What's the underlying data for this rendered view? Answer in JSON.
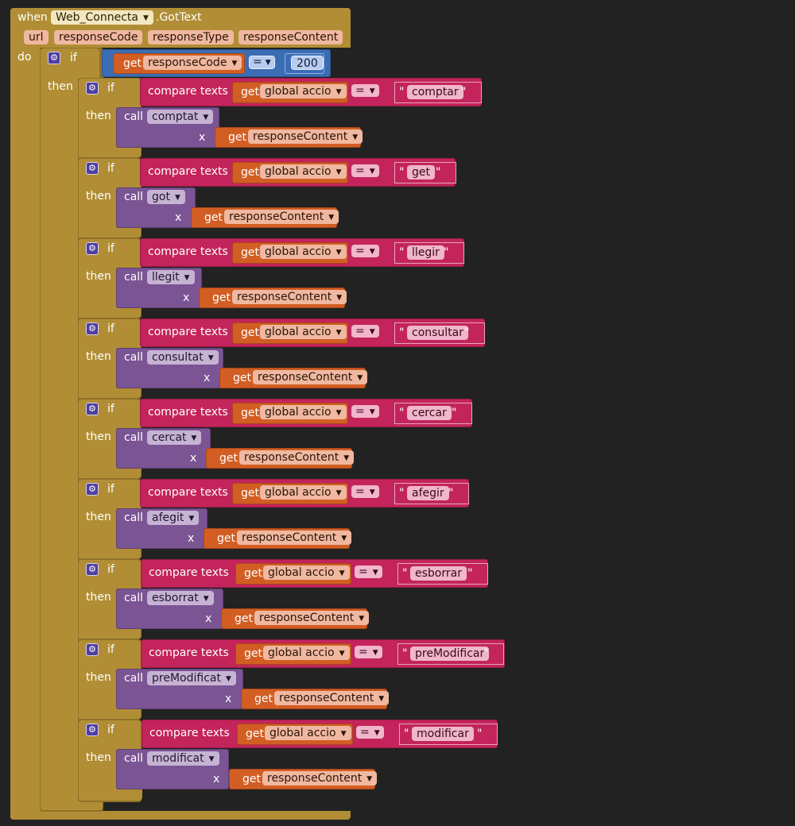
{
  "event": {
    "when_label": "when",
    "component": "Web_Connecta",
    "event_name": ".GotText",
    "params": [
      "url",
      "responseCode",
      "responseType",
      "responseContent"
    ],
    "do_label": "do"
  },
  "outer_if": {
    "if_label": "if",
    "then_label": "then",
    "get_label": "get",
    "variable": "responseCode",
    "operator": "=",
    "value": "200"
  },
  "branches": [
    {
      "if_label": "if",
      "then_label": "then",
      "compare_label": "compare texts",
      "get_label": "get",
      "variable": "global accio",
      "operator": "=",
      "quote_open": "\"",
      "string": "comptar",
      "quote_close": "\"",
      "call_label": "call",
      "procedure": "comptat",
      "arg_label": "x",
      "arg_get": "get",
      "arg_variable": "responseContent"
    },
    {
      "if_label": "if",
      "then_label": "then",
      "compare_label": "compare texts",
      "get_label": "get",
      "variable": "global accio",
      "operator": "=",
      "quote_open": "\"",
      "string": "get",
      "quote_close": "\"",
      "call_label": "call",
      "procedure": "got",
      "arg_label": "x",
      "arg_get": "get",
      "arg_variable": "responseContent"
    },
    {
      "if_label": "if",
      "then_label": "then",
      "compare_label": "compare texts",
      "get_label": "get",
      "variable": "global accio",
      "operator": "=",
      "quote_open": "\"",
      "string": "llegir",
      "quote_close": "\"",
      "call_label": "call",
      "procedure": "llegit",
      "arg_label": "x",
      "arg_get": "get",
      "arg_variable": "responseContent"
    },
    {
      "if_label": "if",
      "then_label": "then",
      "compare_label": "compare texts",
      "get_label": "get",
      "variable": "global accio",
      "operator": "=",
      "quote_open": "\"",
      "string": "consultar",
      "quote_close": "\"",
      "call_label": "call",
      "procedure": "consultat",
      "arg_label": "x",
      "arg_get": "get",
      "arg_variable": "responseContent"
    },
    {
      "if_label": "if",
      "then_label": "then",
      "compare_label": "compare texts",
      "get_label": "get",
      "variable": "global accio",
      "operator": "=",
      "quote_open": "\"",
      "string": "cercar",
      "quote_close": "\"",
      "call_label": "call",
      "procedure": "cercat",
      "arg_label": "x",
      "arg_get": "get",
      "arg_variable": "responseContent"
    },
    {
      "if_label": "if",
      "then_label": "then",
      "compare_label": "compare texts",
      "get_label": "get",
      "variable": "global accio",
      "operator": "=",
      "quote_open": "\"",
      "string": "afegir",
      "quote_close": "\"",
      "call_label": "call",
      "procedure": "afegit",
      "arg_label": "x",
      "arg_get": "get",
      "arg_variable": "responseContent"
    },
    {
      "if_label": "if",
      "then_label": "then",
      "compare_label": "compare texts",
      "get_label": "get",
      "variable": "global accio",
      "operator": "=",
      "quote_open": "\"",
      "string": "esborrar",
      "quote_close": "\"",
      "call_label": "call",
      "procedure": "esborrat",
      "arg_label": "x",
      "arg_get": "get",
      "arg_variable": "responseContent"
    },
    {
      "if_label": "if",
      "then_label": "then",
      "compare_label": "compare texts",
      "get_label": "get",
      "variable": "global accio",
      "operator": "=",
      "quote_open": "\"",
      "string": "preModificar",
      "quote_close": "\"",
      "call_label": "call",
      "procedure": "preModificat",
      "arg_label": "x",
      "arg_get": "get",
      "arg_variable": "responseContent"
    },
    {
      "if_label": "if",
      "then_label": "then",
      "compare_label": "compare texts",
      "get_label": "get",
      "variable": "global accio",
      "operator": "=",
      "quote_open": "\"",
      "string": "modificar",
      "quote_close": "\"",
      "call_label": "call",
      "procedure": "modificat",
      "arg_label": "x",
      "arg_get": "get",
      "arg_variable": "responseContent"
    }
  ],
  "colors": {
    "background": "#222222",
    "event_block": "#B18E35",
    "control_if": "#B18E35",
    "compare_block": "#C3245B",
    "variable_get": "#D25E23",
    "procedure_call": "#7B5494",
    "math_compare": "#3B6DB5"
  },
  "icons": {
    "dropdown": "triangle-down-icon",
    "mutator": "gear-icon"
  }
}
